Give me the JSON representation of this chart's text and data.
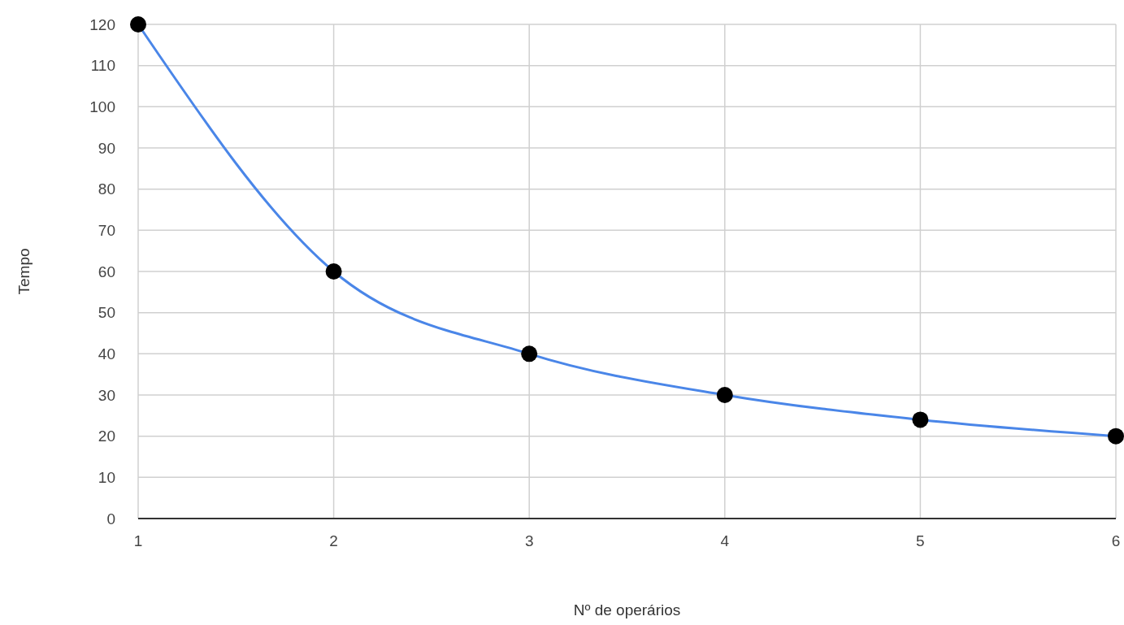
{
  "chart_data": {
    "type": "line",
    "xlabel": "Nº de operários",
    "ylabel": "Tempo",
    "x": [
      1,
      2,
      3,
      4,
      5,
      6
    ],
    "values": [
      120,
      60,
      40,
      30,
      24,
      20
    ],
    "color": "#4a86e8",
    "xlim": [
      1,
      6
    ],
    "xticks": [
      1,
      2,
      3,
      4,
      5,
      6
    ],
    "ylim": [
      0,
      120
    ],
    "yticks": [
      0,
      10,
      20,
      30,
      40,
      50,
      60,
      70,
      80,
      90,
      100,
      110,
      120
    ],
    "grid": true,
    "marker": "circle",
    "line_style": "solid"
  }
}
